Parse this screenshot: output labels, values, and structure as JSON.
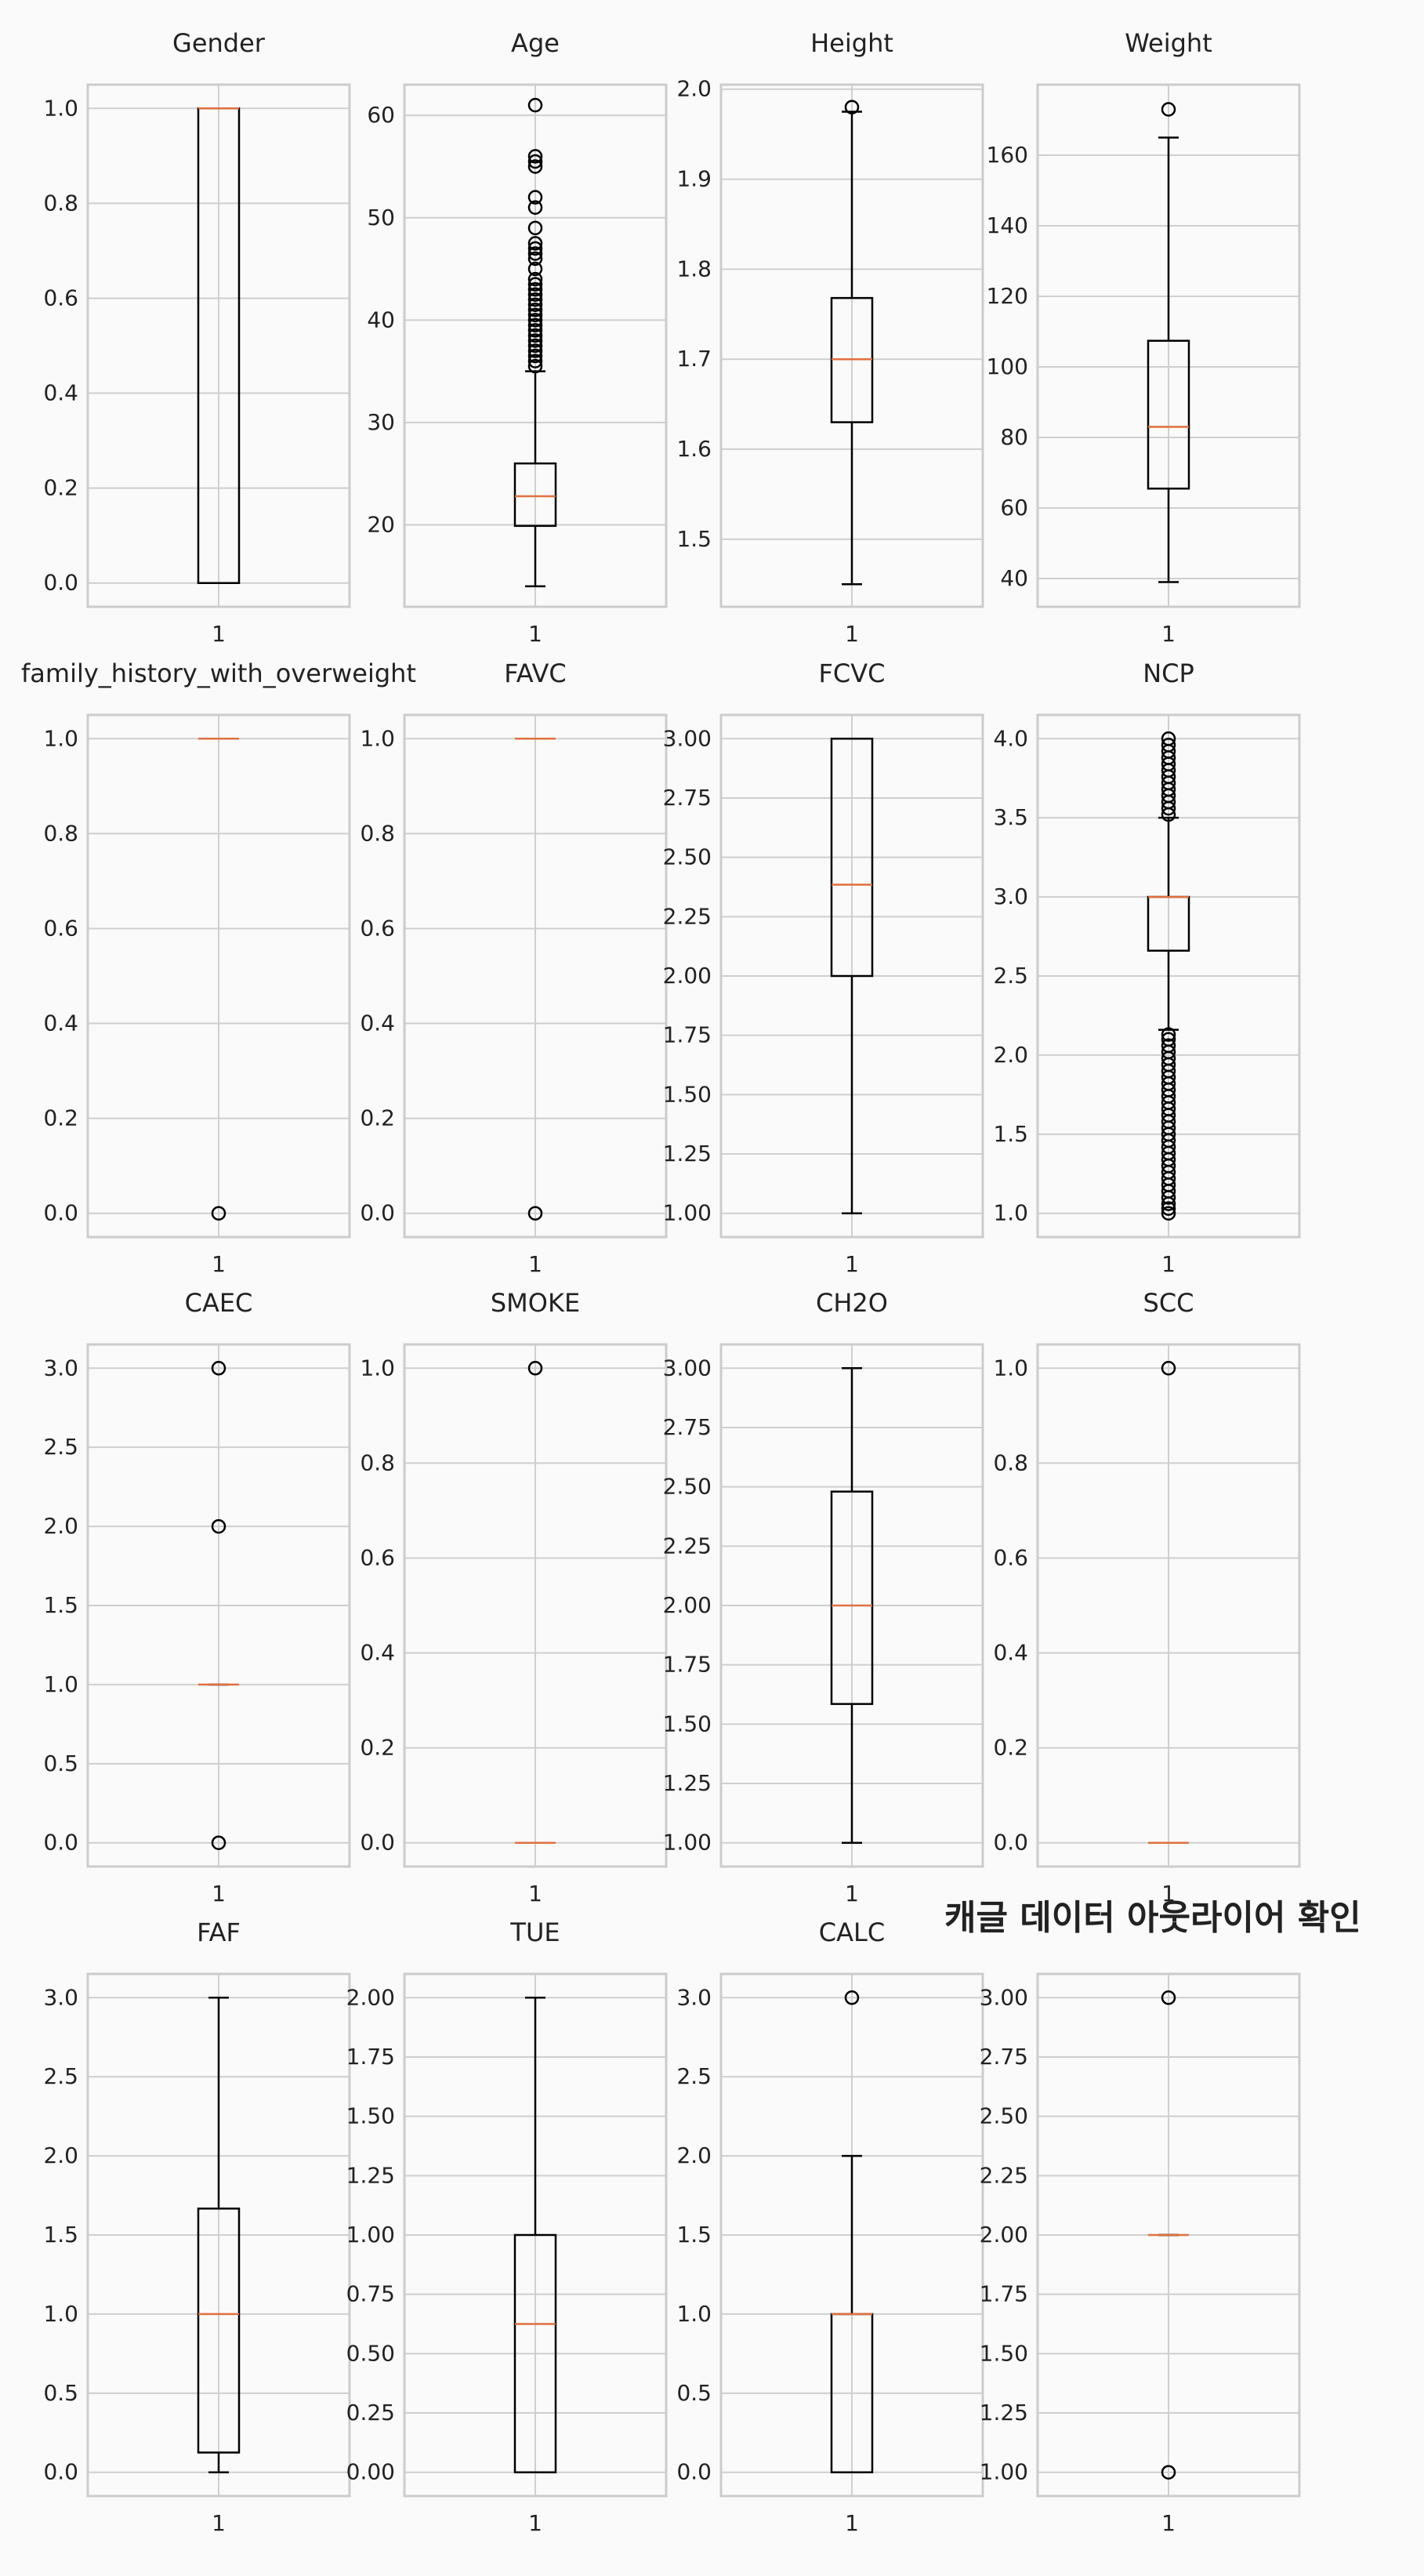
{
  "suptitle": "캐글 데이터 아웃라이어 확인",
  "colors": {
    "box": "#000000",
    "median": "#e07040",
    "grid": "#cfcfcf",
    "frame": "#cccccc",
    "background": "#fafafa"
  },
  "chart_data": [
    {
      "type": "box",
      "title": "Gender",
      "xticks": [
        "1"
      ],
      "ylim": [
        -0.05,
        1.05
      ],
      "yticks": [
        "0.0",
        "0.2",
        "0.4",
        "0.6",
        "0.8",
        "1.0"
      ],
      "box": {
        "q1": 0,
        "median": 1,
        "q3": 1,
        "whisker_low": 0,
        "whisker_high": 1,
        "outliers": []
      }
    },
    {
      "type": "box",
      "title": "Age",
      "xticks": [
        "1"
      ],
      "ylim": [
        12,
        63
      ],
      "yticks": [
        "20",
        "30",
        "40",
        "50",
        "60"
      ],
      "box": {
        "q1": 19.9,
        "median": 22.8,
        "q3": 26,
        "whisker_low": 14,
        "whisker_high": 35,
        "outliers": [
          35.5,
          36,
          36.5,
          37,
          37.5,
          38,
          38.5,
          39,
          39.5,
          40,
          40.5,
          41,
          41.5,
          42,
          42.5,
          43,
          43.5,
          44,
          45,
          46,
          46.5,
          47,
          47.5,
          49,
          51,
          52,
          55,
          55.5,
          56,
          61
        ]
      }
    },
    {
      "type": "box",
      "title": "Height",
      "xticks": [
        "1"
      ],
      "ylim": [
        1.425,
        2.005
      ],
      "yticks": [
        "1.5",
        "1.6",
        "1.7",
        "1.8",
        "1.9",
        "2.0"
      ],
      "box": {
        "q1": 1.63,
        "median": 1.7,
        "q3": 1.768,
        "whisker_low": 1.45,
        "whisker_high": 1.975,
        "outliers": [
          1.98
        ]
      }
    },
    {
      "type": "box",
      "title": "Weight",
      "xticks": [
        "1"
      ],
      "ylim": [
        32,
        180
      ],
      "yticks": [
        "40",
        "60",
        "80",
        "100",
        "120",
        "140",
        "160"
      ],
      "box": {
        "q1": 65.5,
        "median": 83,
        "q3": 107.4,
        "whisker_low": 39,
        "whisker_high": 165,
        "outliers": [
          173
        ]
      }
    },
    {
      "type": "box",
      "title": "family_history_with_overweight",
      "xticks": [
        "1"
      ],
      "ylim": [
        -0.05,
        1.05
      ],
      "yticks": [
        "0.0",
        "0.2",
        "0.4",
        "0.6",
        "0.8",
        "1.0"
      ],
      "box": {
        "q1": 1,
        "median": 1,
        "q3": 1,
        "whisker_low": 1,
        "whisker_high": 1,
        "outliers": [
          0
        ]
      }
    },
    {
      "type": "box",
      "title": "FAVC",
      "xticks": [
        "1"
      ],
      "ylim": [
        -0.05,
        1.05
      ],
      "yticks": [
        "0.0",
        "0.2",
        "0.4",
        "0.6",
        "0.8",
        "1.0"
      ],
      "box": {
        "q1": 1,
        "median": 1,
        "q3": 1,
        "whisker_low": 1,
        "whisker_high": 1,
        "outliers": [
          0
        ]
      }
    },
    {
      "type": "box",
      "title": "FCVC",
      "xticks": [
        "1"
      ],
      "ylim": [
        0.9,
        3.1
      ],
      "yticks": [
        "1.00",
        "1.25",
        "1.50",
        "1.75",
        "2.00",
        "2.25",
        "2.50",
        "2.75",
        "3.00"
      ],
      "box": {
        "q1": 2,
        "median": 2.385,
        "q3": 3,
        "whisker_low": 1,
        "whisker_high": 3,
        "outliers": []
      }
    },
    {
      "type": "box",
      "title": "NCP",
      "xticks": [
        "1"
      ],
      "ylim": [
        0.85,
        4.15
      ],
      "yticks": [
        "1.0",
        "1.5",
        "2.0",
        "2.5",
        "3.0",
        "3.5",
        "4.0"
      ],
      "box": {
        "q1": 2.66,
        "median": 3,
        "q3": 3,
        "whisker_low": 2.16,
        "whisker_high": 3.5,
        "outliers": [
          1,
          1.03,
          1.06,
          1.1,
          1.14,
          1.18,
          1.22,
          1.26,
          1.3,
          1.34,
          1.38,
          1.42,
          1.46,
          1.5,
          1.54,
          1.58,
          1.62,
          1.66,
          1.7,
          1.74,
          1.78,
          1.82,
          1.86,
          1.9,
          1.94,
          1.98,
          2.02,
          2.06,
          2.1,
          2.13,
          3.52,
          3.56,
          3.6,
          3.64,
          3.68,
          3.72,
          3.76,
          3.8,
          3.84,
          3.88,
          3.92,
          3.96,
          4
        ]
      }
    },
    {
      "type": "box",
      "title": "CAEC",
      "xticks": [
        "1"
      ],
      "ylim": [
        -0.15,
        3.15
      ],
      "yticks": [
        "0.0",
        "0.5",
        "1.0",
        "1.5",
        "2.0",
        "2.5",
        "3.0"
      ],
      "box": {
        "q1": 1,
        "median": 1,
        "q3": 1,
        "whisker_low": 1,
        "whisker_high": 1,
        "outliers": [
          0,
          2,
          3
        ]
      }
    },
    {
      "type": "box",
      "title": "SMOKE",
      "xticks": [
        "1"
      ],
      "ylim": [
        -0.05,
        1.05
      ],
      "yticks": [
        "0.0",
        "0.2",
        "0.4",
        "0.6",
        "0.8",
        "1.0"
      ],
      "box": {
        "q1": 0,
        "median": 0,
        "q3": 0,
        "whisker_low": 0,
        "whisker_high": 0,
        "outliers": [
          1
        ]
      }
    },
    {
      "type": "box",
      "title": "CH2O",
      "xticks": [
        "1"
      ],
      "ylim": [
        0.9,
        3.1
      ],
      "yticks": [
        "1.00",
        "1.25",
        "1.50",
        "1.75",
        "2.00",
        "2.25",
        "2.50",
        "2.75",
        "3.00"
      ],
      "box": {
        "q1": 1.585,
        "median": 2,
        "q3": 2.48,
        "whisker_low": 1,
        "whisker_high": 3,
        "outliers": []
      }
    },
    {
      "type": "box",
      "title": "SCC",
      "xticks": [
        "1"
      ],
      "ylim": [
        -0.05,
        1.05
      ],
      "yticks": [
        "0.0",
        "0.2",
        "0.4",
        "0.6",
        "0.8",
        "1.0"
      ],
      "box": {
        "q1": 0,
        "median": 0,
        "q3": 0,
        "whisker_low": 0,
        "whisker_high": 0,
        "outliers": [
          1
        ]
      }
    },
    {
      "type": "box",
      "title": "FAF",
      "xticks": [
        "1"
      ],
      "ylim": [
        -0.15,
        3.15
      ],
      "yticks": [
        "0.0",
        "0.5",
        "1.0",
        "1.5",
        "2.0",
        "2.5",
        "3.0"
      ],
      "box": {
        "q1": 0.125,
        "median": 1,
        "q3": 1.667,
        "whisker_low": 0,
        "whisker_high": 3,
        "outliers": []
      }
    },
    {
      "type": "box",
      "title": "TUE",
      "xticks": [
        "1"
      ],
      "ylim": [
        -0.1,
        2.1
      ],
      "yticks": [
        "0.00",
        "0.25",
        "0.50",
        "0.75",
        "1.00",
        "1.25",
        "1.50",
        "1.75",
        "2.00"
      ],
      "box": {
        "q1": 0,
        "median": 0.625,
        "q3": 1,
        "whisker_low": 0,
        "whisker_high": 2,
        "outliers": []
      }
    },
    {
      "type": "box",
      "title": "CALC",
      "xticks": [
        "1"
      ],
      "ylim": [
        -0.15,
        3.15
      ],
      "yticks": [
        "0.0",
        "0.5",
        "1.0",
        "1.5",
        "2.0",
        "2.5",
        "3.0"
      ],
      "box": {
        "q1": 0,
        "median": 1,
        "q3": 1,
        "whisker_low": 0,
        "whisker_high": 2,
        "outliers": [
          3
        ]
      }
    },
    {
      "type": "box",
      "title": "",
      "xticks": [
        "1"
      ],
      "ylim": [
        0.9,
        3.1
      ],
      "yticks": [
        "1.00",
        "1.25",
        "1.50",
        "1.75",
        "2.00",
        "2.25",
        "2.50",
        "2.75",
        "3.00"
      ],
      "box": {
        "q1": 2,
        "median": 2,
        "q3": 2,
        "whisker_low": 2,
        "whisker_high": 2,
        "outliers": [
          1,
          3
        ]
      }
    }
  ]
}
